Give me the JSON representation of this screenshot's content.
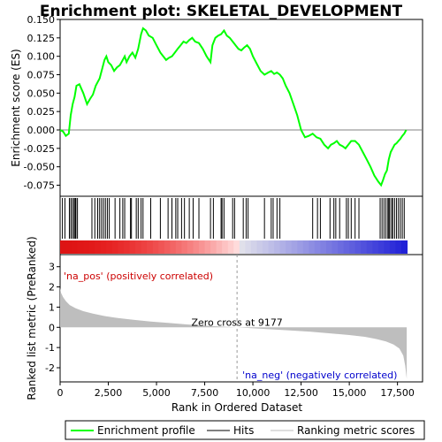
{
  "chart_data": {
    "type": "line",
    "title": "Enrichment plot: SKELETAL_DEVELOPMENT",
    "top_panel": {
      "ylabel": "Enrichment score (ES)",
      "ylim": [
        -0.09,
        0.15
      ],
      "yticks": [
        "0.150",
        "0.125",
        "0.100",
        "0.075",
        "0.050",
        "0.025",
        "0.000",
        "-0.025",
        "-0.050",
        "-0.075"
      ],
      "ytick_values": [
        0.15,
        0.125,
        0.1,
        0.075,
        0.05,
        0.025,
        0.0,
        -0.025,
        -0.05,
        -0.075
      ],
      "series": [
        {
          "name": "Enrichment profile",
          "color": "#00ff00",
          "x": [
            0,
            150,
            300,
            450,
            550,
            650,
            750,
            850,
            1000,
            1200,
            1400,
            1550,
            1700,
            1850,
            1950,
            2050,
            2200,
            2300,
            2400,
            2500,
            2650,
            2800,
            2950,
            3100,
            3250,
            3350,
            3450,
            3600,
            3750,
            3900,
            4050,
            4200,
            4300,
            4450,
            4600,
            4800,
            5000,
            5200,
            5350,
            5500,
            5650,
            5800,
            5950,
            6100,
            6250,
            6400,
            6550,
            6700,
            6850,
            7000,
            7200,
            7400,
            7600,
            7800,
            7900,
            8050,
            8200,
            8350,
            8500,
            8650,
            8800,
            8950,
            9100,
            9250,
            9400,
            9550,
            9700,
            9850,
            10000,
            10200,
            10400,
            10600,
            10800,
            10950,
            11100,
            11250,
            11400,
            11550,
            11700,
            11900,
            12100,
            12300,
            12500,
            12700,
            12900,
            13100,
            13300,
            13500,
            13700,
            13900,
            14050,
            14200,
            14350,
            14500,
            14650,
            14800,
            14950,
            15100,
            15300,
            15500,
            15700,
            15900,
            16100,
            16300,
            16500,
            16650,
            16750,
            16850,
            16950,
            17050,
            17150,
            17250,
            17350,
            17450,
            17550,
            17650,
            17750,
            17850,
            17950
          ],
          "y": [
            0.0,
            -0.002,
            -0.008,
            -0.005,
            0.02,
            0.035,
            0.045,
            0.06,
            0.062,
            0.05,
            0.035,
            0.042,
            0.048,
            0.06,
            0.065,
            0.07,
            0.085,
            0.095,
            0.1,
            0.092,
            0.088,
            0.08,
            0.085,
            0.088,
            0.095,
            0.1,
            0.092,
            0.1,
            0.105,
            0.098,
            0.11,
            0.13,
            0.138,
            0.135,
            0.128,
            0.125,
            0.115,
            0.105,
            0.1,
            0.095,
            0.098,
            0.1,
            0.105,
            0.11,
            0.115,
            0.12,
            0.118,
            0.122,
            0.125,
            0.12,
            0.118,
            0.11,
            0.1,
            0.092,
            0.115,
            0.125,
            0.128,
            0.13,
            0.135,
            0.128,
            0.125,
            0.12,
            0.115,
            0.11,
            0.108,
            0.112,
            0.115,
            0.11,
            0.1,
            0.09,
            0.08,
            0.075,
            0.078,
            0.08,
            0.076,
            0.078,
            0.075,
            0.07,
            0.06,
            0.05,
            0.035,
            0.02,
            0.0,
            -0.01,
            -0.008,
            -0.005,
            -0.01,
            -0.012,
            -0.02,
            -0.025,
            -0.02,
            -0.018,
            -0.015,
            -0.02,
            -0.022,
            -0.025,
            -0.02,
            -0.015,
            -0.015,
            -0.02,
            -0.03,
            -0.04,
            -0.05,
            -0.062,
            -0.07,
            -0.075,
            -0.068,
            -0.06,
            -0.055,
            -0.04,
            -0.03,
            -0.025,
            -0.02,
            -0.018,
            -0.015,
            -0.012,
            -0.008,
            -0.005,
            0.0
          ]
        }
      ]
    },
    "hits_panel": {
      "hit_positions": [
        120,
        250,
        480,
        560,
        640,
        720,
        780,
        820,
        900,
        1650,
        1800,
        1950,
        2050,
        2150,
        2250,
        2350,
        2450,
        2550,
        2850,
        3100,
        3250,
        3350,
        3650,
        3700,
        3950,
        4050,
        4200,
        4300,
        4700,
        5200,
        5600,
        5800,
        6000,
        6100,
        6300,
        6450,
        6700,
        6900,
        7200,
        7800,
        7950,
        8350,
        8400,
        8500,
        8950,
        9050,
        9500,
        9650,
        9750,
        10600,
        10950,
        11050,
        11250,
        11400,
        13100,
        13350,
        13500,
        14000,
        14200,
        14300,
        14500,
        14850,
        14950,
        15100,
        15300,
        15500,
        16600,
        16700,
        16800,
        16900,
        17000,
        17050,
        17100,
        17200,
        17250,
        17350,
        17450,
        17550,
        17650,
        17750,
        17850
      ]
    },
    "rank_panel": {
      "ylabel": "Ranked list metric (PreRanked)",
      "xlabel": "Rank in Ordered Dataset",
      "ylim": [
        -2.7,
        3.6
      ],
      "yticks": [
        "3",
        "2",
        "1",
        "0",
        "-1",
        "-2"
      ],
      "ytick_values": [
        3,
        2,
        1,
        0,
        -1,
        -2
      ],
      "xticks": [
        "0",
        "2,500",
        "5,000",
        "7,500",
        "10,000",
        "12,500",
        "15,000",
        "17,500"
      ],
      "xtick_values": [
        0,
        2500,
        5000,
        7500,
        10000,
        12500,
        15000,
        17500
      ],
      "xlim": [
        0,
        18800
      ],
      "n_genes": 18000,
      "zero_cross": 9177,
      "zero_cross_label": "Zero cross at 9177",
      "pos_label": "'na_pos' (positively correlated)",
      "neg_label": "'na_neg' (negatively correlated)",
      "pos_color": "#cc0000",
      "neg_color": "#0000cc",
      "fill_color": "#bebebe",
      "metric_curve": {
        "x": [
          0,
          50,
          150,
          300,
          500,
          800,
          1200,
          1700,
          2300,
          3000,
          3800,
          4700,
          5600,
          6500,
          7400,
          8300,
          9177,
          10000,
          11000,
          12000,
          13000,
          14000,
          15000,
          15800,
          16400,
          16900,
          17300,
          17600,
          17800,
          17900,
          17980
        ],
        "y": [
          1.95,
          1.7,
          1.5,
          1.3,
          1.1,
          0.95,
          0.8,
          0.68,
          0.56,
          0.46,
          0.37,
          0.29,
          0.22,
          0.15,
          0.09,
          0.04,
          0.0,
          -0.05,
          -0.1,
          -0.16,
          -0.22,
          -0.3,
          -0.38,
          -0.47,
          -0.58,
          -0.7,
          -0.85,
          -1.05,
          -1.4,
          -1.9,
          -2.55
        ]
      }
    },
    "legend": [
      {
        "label": "Enrichment profile",
        "color": "#00ff00"
      },
      {
        "label": "Hits",
        "color": "#000000"
      },
      {
        "label": "Ranking metric scores",
        "color": "#bebebe"
      }
    ]
  }
}
